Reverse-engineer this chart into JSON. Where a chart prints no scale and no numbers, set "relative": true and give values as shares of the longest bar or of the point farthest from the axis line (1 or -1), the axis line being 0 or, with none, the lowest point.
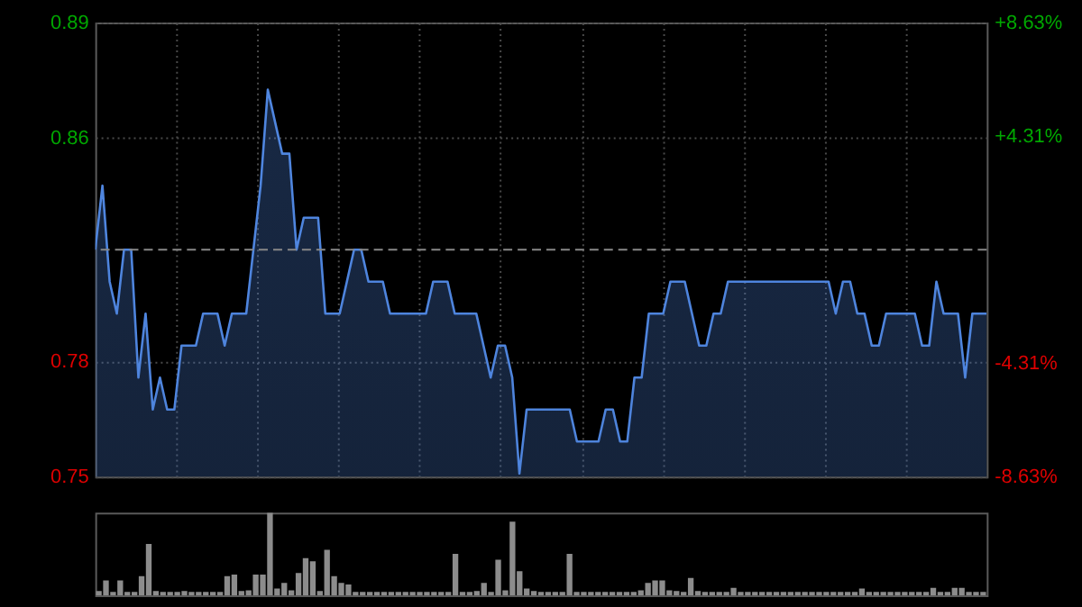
{
  "chart_data": [
    {
      "type": "area",
      "categories": [
        null,
        null,
        null,
        null,
        null,
        null,
        null,
        null,
        null,
        null,
        null,
        null,
        null,
        null,
        null,
        null,
        null,
        null,
        null,
        null,
        null,
        null,
        null,
        null,
        null,
        null,
        null,
        null,
        null,
        null,
        null,
        null,
        null,
        null,
        null,
        null,
        null,
        null,
        null,
        null,
        null,
        null,
        null,
        null,
        null,
        null,
        null,
        null,
        null,
        null,
        null,
        null,
        null,
        null,
        null,
        null,
        null,
        null,
        null,
        null,
        null,
        null,
        null,
        null,
        null,
        null,
        null,
        null,
        null,
        null,
        null,
        null,
        null,
        null,
        null,
        null,
        null,
        null,
        null,
        null,
        null,
        null,
        null,
        null,
        null,
        null,
        null,
        null,
        null,
        null,
        null,
        null,
        null,
        null,
        null,
        null,
        null,
        null,
        null,
        null,
        null,
        null,
        null,
        null,
        null,
        null,
        null,
        null,
        null,
        null,
        null,
        null,
        null,
        null,
        null,
        null,
        null,
        null,
        null,
        null,
        null,
        null,
        null,
        null,
        null
      ],
      "series": [
        {
          "color": "#4f86e0",
          "values": [
            0.82,
            0.84,
            0.81,
            0.8,
            0.82,
            0.82,
            0.78,
            0.8,
            0.77,
            0.78,
            0.77,
            0.77,
            0.79,
            0.79,
            0.79,
            0.8,
            0.8,
            0.8,
            0.79,
            0.8,
            0.8,
            0.8,
            0.82,
            0.84,
            0.87,
            0.86,
            0.85,
            0.85,
            0.82,
            0.83,
            0.83,
            0.83,
            0.8,
            0.8,
            0.8,
            0.81,
            0.82,
            0.82,
            0.81,
            0.81,
            0.81,
            0.8,
            0.8,
            0.8,
            0.8,
            0.8,
            0.8,
            0.81,
            0.81,
            0.81,
            0.8,
            0.8,
            0.8,
            0.8,
            0.79,
            0.78,
            0.79,
            0.79,
            0.78,
            0.75,
            0.77,
            0.77,
            0.77,
            0.77,
            0.77,
            0.77,
            0.77,
            0.76,
            0.76,
            0.76,
            0.76,
            0.77,
            0.77,
            0.76,
            0.76,
            0.78,
            0.78,
            0.8,
            0.8,
            0.8,
            0.81,
            0.81,
            0.81,
            0.8,
            0.79,
            0.79,
            0.8,
            0.8,
            0.81,
            0.81,
            0.81,
            0.81,
            0.81,
            0.81,
            0.81,
            0.81,
            0.81,
            0.81,
            0.81,
            0.81,
            0.81,
            0.81,
            0.81,
            0.8,
            0.81,
            0.81,
            0.8,
            0.8,
            0.79,
            0.79,
            0.8,
            0.8,
            0.8,
            0.8,
            0.8,
            0.79,
            0.79,
            0.81,
            0.8,
            0.8,
            0.8,
            0.78,
            0.8,
            0.8,
            0.8
          ]
        }
      ],
      "ylim": [
        0.749,
        0.891
      ],
      "yticks": [
        {
          "value": 0.891,
          "label": "0.89"
        },
        {
          "value": 0.855,
          "label": "0.86"
        },
        {
          "value": 0.785,
          "label": "0.78"
        },
        {
          "value": 0.749,
          "label": "0.75"
        }
      ],
      "y2lim": [
        -8.63,
        8.63
      ],
      "y2ticks": [
        {
          "value": 8.63,
          "label": "+8.63%"
        },
        {
          "value": 4.31,
          "label": "+4.31%"
        },
        {
          "value": -4.31,
          "label": "-4.31%"
        },
        {
          "value": -8.63,
          "label": "-8.63%"
        }
      ],
      "ref_lines": [
        {
          "axis": "y",
          "value": 0.82,
          "label": null,
          "color": "#888888",
          "line_style": "dashed"
        }
      ],
      "grid": true,
      "legend": false
    },
    {
      "type": "bar",
      "relative": true,
      "categories": [
        null,
        null,
        null,
        null,
        null,
        null,
        null,
        null,
        null,
        null,
        null,
        null,
        null,
        null,
        null,
        null,
        null,
        null,
        null,
        null,
        null,
        null,
        null,
        null,
        null,
        null,
        null,
        null,
        null,
        null,
        null,
        null,
        null,
        null,
        null,
        null,
        null,
        null,
        null,
        null,
        null,
        null,
        null,
        null,
        null,
        null,
        null,
        null,
        null,
        null,
        null,
        null,
        null,
        null,
        null,
        null,
        null,
        null,
        null,
        null,
        null,
        null,
        null,
        null,
        null,
        null,
        null,
        null,
        null,
        null,
        null,
        null,
        null,
        null,
        null,
        null,
        null,
        null,
        null,
        null,
        null,
        null,
        null,
        null,
        null,
        null,
        null,
        null,
        null,
        null,
        null,
        null,
        null,
        null,
        null,
        null,
        null,
        null,
        null,
        null,
        null,
        null,
        null,
        null,
        null,
        null,
        null,
        null,
        null,
        null,
        null,
        null,
        null,
        null,
        null,
        null,
        null,
        null,
        null,
        null,
        null,
        null,
        null,
        null,
        null
      ],
      "series": [
        {
          "color": "#8c8c8c",
          "values": [
            0.05,
            0.18,
            0.04,
            0.18,
            0.04,
            0.04,
            0.23,
            0.62,
            0.05,
            0.04,
            0.04,
            0.04,
            0.05,
            0.04,
            0.04,
            0.04,
            0.04,
            0.04,
            0.23,
            0.25,
            0.05,
            0.06,
            0.25,
            0.25,
            1.0,
            0.08,
            0.15,
            0.06,
            0.27,
            0.45,
            0.41,
            0.05,
            0.55,
            0.23,
            0.15,
            0.13,
            0.04,
            0.04,
            0.04,
            0.04,
            0.04,
            0.04,
            0.04,
            0.04,
            0.04,
            0.04,
            0.04,
            0.04,
            0.04,
            0.04,
            0.5,
            0.04,
            0.04,
            0.05,
            0.15,
            0.04,
            0.43,
            0.06,
            0.89,
            0.29,
            0.08,
            0.05,
            0.04,
            0.04,
            0.04,
            0.04,
            0.5,
            0.04,
            0.04,
            0.04,
            0.04,
            0.04,
            0.04,
            0.04,
            0.04,
            0.04,
            0.06,
            0.15,
            0.18,
            0.18,
            0.06,
            0.05,
            0.04,
            0.21,
            0.05,
            0.04,
            0.04,
            0.04,
            0.04,
            0.09,
            0.04,
            0.04,
            0.04,
            0.04,
            0.04,
            0.04,
            0.04,
            0.04,
            0.04,
            0.04,
            0.04,
            0.04,
            0.04,
            0.04,
            0.04,
            0.04,
            0.04,
            0.08,
            0.04,
            0.04,
            0.04,
            0.04,
            0.04,
            0.04,
            0.04,
            0.04,
            0.04,
            0.09,
            0.04,
            0.04,
            0.09,
            0.09,
            0.04,
            0.04,
            0.04
          ]
        }
      ],
      "legend": false
    }
  ]
}
